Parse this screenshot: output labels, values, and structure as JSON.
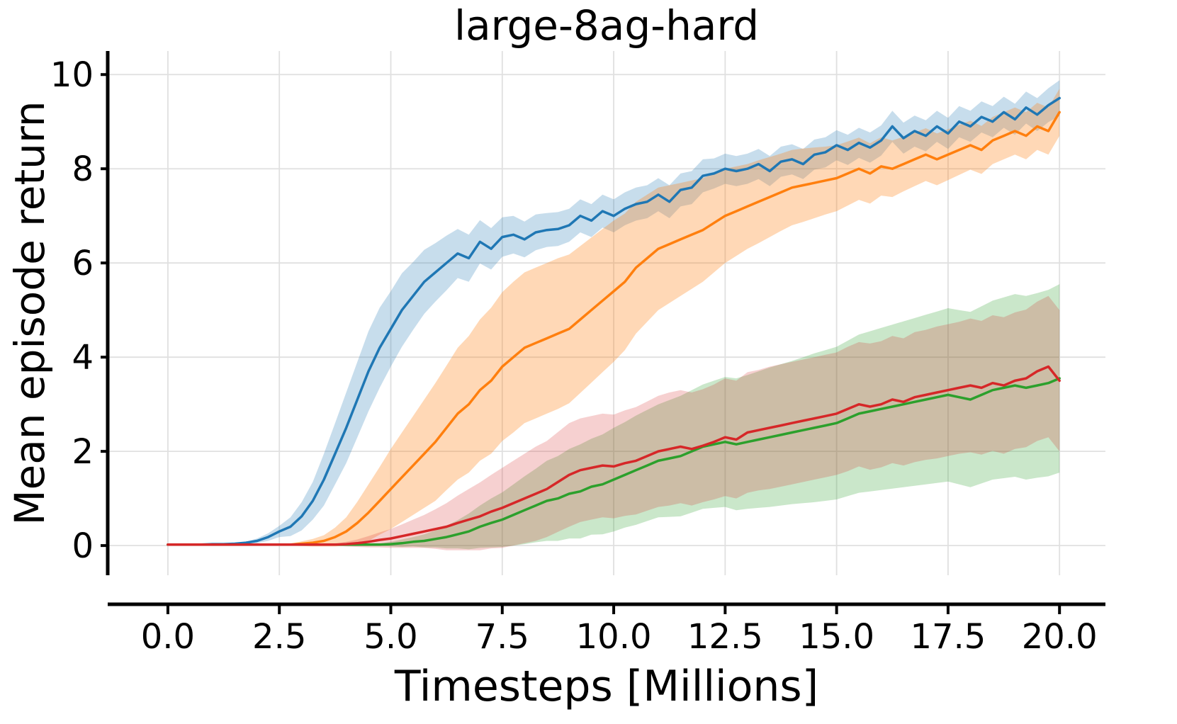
{
  "chart_data": {
    "type": "line",
    "title": "large-8ag-hard",
    "xlabel": "Timesteps [Millions]",
    "ylabel": "Mean episode return",
    "xlim": [
      -1.35,
      21.03
    ],
    "ylim": [
      -0.63,
      10.5
    ],
    "grid": true,
    "legend": "none",
    "x_ticks": [
      0.0,
      2.5,
      5.0,
      7.5,
      10.0,
      12.5,
      15.0,
      17.5,
      20.0
    ],
    "x_tick_labels": [
      "0.0",
      "2.5",
      "5.0",
      "7.5",
      "10.0",
      "12.5",
      "15.0",
      "17.5",
      "20.0"
    ],
    "y_ticks": [
      0,
      2,
      4,
      6,
      8,
      10
    ],
    "y_tick_labels": [
      "0",
      "2",
      "4",
      "6",
      "8",
      "10"
    ],
    "x_start": 0,
    "x_step": 0.25,
    "axis_color": "#000000",
    "grid_color": "#e0e0e0",
    "series": [
      {
        "name": "blue",
        "color": "#1f77b4",
        "band_opacity": 0.25,
        "mean": [
          0.02,
          0.02,
          0.02,
          0.02,
          0.03,
          0.03,
          0.04,
          0.06,
          0.1,
          0.18,
          0.3,
          0.4,
          0.62,
          0.95,
          1.4,
          1.95,
          2.5,
          3.1,
          3.7,
          4.2,
          4.6,
          5.0,
          5.3,
          5.6,
          5.8,
          6.0,
          6.2,
          6.1,
          6.45,
          6.3,
          6.55,
          6.6,
          6.5,
          6.65,
          6.7,
          6.72,
          6.8,
          7.0,
          6.9,
          7.1,
          7.0,
          7.15,
          7.25,
          7.3,
          7.45,
          7.3,
          7.55,
          7.6,
          7.85,
          7.9,
          8.0,
          7.95,
          8.0,
          8.1,
          7.95,
          8.15,
          8.2,
          8.1,
          8.3,
          8.35,
          8.5,
          8.4,
          8.55,
          8.45,
          8.6,
          8.9,
          8.65,
          8.8,
          8.7,
          8.9,
          8.75,
          9.0,
          8.9,
          9.1,
          9.0,
          9.2,
          9.05,
          9.3,
          9.15,
          9.35,
          9.5
        ],
        "halfwidth": [
          0.02,
          0.02,
          0.02,
          0.02,
          0.02,
          0.02,
          0.02,
          0.02,
          0.05,
          0.08,
          0.12,
          0.2,
          0.3,
          0.4,
          0.55,
          0.65,
          0.75,
          0.8,
          0.85,
          0.85,
          0.8,
          0.78,
          0.72,
          0.68,
          0.62,
          0.58,
          0.52,
          0.5,
          0.46,
          0.44,
          0.42,
          0.4,
          0.38,
          0.38,
          0.36,
          0.36,
          0.35,
          0.35,
          0.35,
          0.35,
          0.35,
          0.35,
          0.35,
          0.35,
          0.35,
          0.35,
          0.35,
          0.35,
          0.35,
          0.32,
          0.32,
          0.32,
          0.32,
          0.32,
          0.32,
          0.32,
          0.32,
          0.32,
          0.32,
          0.32,
          0.32,
          0.32,
          0.32,
          0.32,
          0.32,
          0.33,
          0.33,
          0.33,
          0.33,
          0.33,
          0.33,
          0.33,
          0.33,
          0.33,
          0.33,
          0.33,
          0.33,
          0.34,
          0.35,
          0.36,
          0.38
        ]
      },
      {
        "name": "orange",
        "color": "#ff7f0e",
        "band_opacity": 0.3,
        "mean": [
          0.02,
          0.02,
          0.02,
          0.02,
          0.02,
          0.02,
          0.02,
          0.02,
          0.02,
          0.02,
          0.02,
          0.02,
          0.04,
          0.06,
          0.1,
          0.18,
          0.3,
          0.48,
          0.7,
          0.95,
          1.2,
          1.45,
          1.7,
          1.95,
          2.2,
          2.5,
          2.8,
          3.0,
          3.3,
          3.5,
          3.8,
          4.0,
          4.2,
          4.3,
          4.4,
          4.5,
          4.6,
          4.8,
          5.0,
          5.2,
          5.4,
          5.6,
          5.9,
          6.1,
          6.3,
          6.4,
          6.5,
          6.6,
          6.7,
          6.85,
          7.0,
          7.1,
          7.2,
          7.3,
          7.4,
          7.5,
          7.6,
          7.65,
          7.7,
          7.75,
          7.8,
          7.9,
          8.0,
          7.9,
          8.05,
          8.0,
          8.1,
          8.2,
          8.3,
          8.2,
          8.3,
          8.4,
          8.5,
          8.4,
          8.6,
          8.7,
          8.8,
          8.7,
          8.9,
          8.8,
          9.2
        ],
        "halfwidth": [
          0.02,
          0.02,
          0.02,
          0.02,
          0.02,
          0.02,
          0.02,
          0.02,
          0.02,
          0.02,
          0.02,
          0.02,
          0.05,
          0.08,
          0.12,
          0.2,
          0.3,
          0.45,
          0.6,
          0.72,
          0.85,
          0.95,
          1.05,
          1.15,
          1.25,
          1.32,
          1.4,
          1.45,
          1.5,
          1.55,
          1.58,
          1.6,
          1.6,
          1.6,
          1.6,
          1.6,
          1.58,
          1.56,
          1.54,
          1.52,
          1.5,
          1.45,
          1.4,
          1.35,
          1.3,
          1.25,
          1.2,
          1.15,
          1.1,
          1.05,
          1.0,
          0.95,
          0.9,
          0.88,
          0.85,
          0.82,
          0.8,
          0.78,
          0.75,
          0.72,
          0.7,
          0.68,
          0.66,
          0.64,
          0.62,
          0.6,
          0.58,
          0.57,
          0.56,
          0.55,
          0.54,
          0.53,
          0.52,
          0.51,
          0.5,
          0.5,
          0.5,
          0.5,
          0.5,
          0.5,
          0.5
        ]
      },
      {
        "name": "green",
        "color": "#2ca02c",
        "band_opacity": 0.25,
        "mean": [
          0.02,
          0.02,
          0.02,
          0.02,
          0.02,
          0.02,
          0.02,
          0.02,
          0.02,
          0.02,
          0.02,
          0.02,
          0.02,
          0.02,
          0.02,
          0.02,
          0.02,
          0.02,
          0.02,
          0.02,
          0.03,
          0.05,
          0.08,
          0.1,
          0.14,
          0.18,
          0.24,
          0.3,
          0.4,
          0.48,
          0.55,
          0.65,
          0.75,
          0.85,
          0.95,
          1.0,
          1.1,
          1.15,
          1.25,
          1.3,
          1.4,
          1.5,
          1.6,
          1.7,
          1.8,
          1.85,
          1.9,
          2.0,
          2.1,
          2.15,
          2.2,
          2.15,
          2.2,
          2.25,
          2.3,
          2.35,
          2.4,
          2.45,
          2.5,
          2.55,
          2.6,
          2.7,
          2.8,
          2.85,
          2.9,
          2.95,
          3.0,
          3.05,
          3.1,
          3.15,
          3.2,
          3.15,
          3.1,
          3.2,
          3.3,
          3.35,
          3.4,
          3.35,
          3.4,
          3.45,
          3.55
        ],
        "halfwidth": [
          0.02,
          0.02,
          0.02,
          0.02,
          0.02,
          0.02,
          0.02,
          0.02,
          0.02,
          0.02,
          0.02,
          0.02,
          0.02,
          0.02,
          0.02,
          0.02,
          0.02,
          0.02,
          0.02,
          0.02,
          0.05,
          0.08,
          0.1,
          0.14,
          0.18,
          0.24,
          0.3,
          0.38,
          0.45,
          0.52,
          0.58,
          0.65,
          0.72,
          0.78,
          0.85,
          0.9,
          0.95,
          1.0,
          1.02,
          1.06,
          1.1,
          1.12,
          1.16,
          1.18,
          1.2,
          1.24,
          1.28,
          1.3,
          1.32,
          1.35,
          1.38,
          1.4,
          1.42,
          1.45,
          1.48,
          1.5,
          1.52,
          1.55,
          1.58,
          1.6,
          1.62,
          1.65,
          1.68,
          1.7,
          1.72,
          1.74,
          1.76,
          1.78,
          1.8,
          1.82,
          1.84,
          1.85,
          1.86,
          1.88,
          1.9,
          1.92,
          1.94,
          1.95,
          1.96,
          1.98,
          2.0
        ]
      },
      {
        "name": "red",
        "color": "#d62728",
        "band_opacity": 0.22,
        "mean": [
          0.02,
          0.02,
          0.02,
          0.02,
          0.02,
          0.02,
          0.02,
          0.02,
          0.02,
          0.02,
          0.02,
          0.02,
          0.02,
          0.02,
          0.02,
          0.02,
          0.03,
          0.05,
          0.08,
          0.12,
          0.15,
          0.2,
          0.25,
          0.3,
          0.35,
          0.4,
          0.48,
          0.55,
          0.62,
          0.72,
          0.8,
          0.9,
          1.0,
          1.1,
          1.2,
          1.35,
          1.5,
          1.6,
          1.65,
          1.7,
          1.68,
          1.75,
          1.8,
          1.9,
          2.0,
          2.05,
          2.1,
          2.05,
          2.12,
          2.2,
          2.3,
          2.25,
          2.4,
          2.45,
          2.5,
          2.55,
          2.6,
          2.65,
          2.7,
          2.75,
          2.8,
          2.9,
          3.0,
          2.95,
          3.0,
          3.1,
          3.05,
          3.15,
          3.2,
          3.25,
          3.3,
          3.35,
          3.4,
          3.35,
          3.45,
          3.4,
          3.5,
          3.55,
          3.7,
          3.8,
          3.5
        ],
        "halfwidth": [
          0.02,
          0.02,
          0.02,
          0.02,
          0.02,
          0.02,
          0.02,
          0.02,
          0.02,
          0.02,
          0.02,
          0.02,
          0.02,
          0.02,
          0.02,
          0.02,
          0.05,
          0.08,
          0.12,
          0.16,
          0.2,
          0.25,
          0.3,
          0.35,
          0.42,
          0.5,
          0.58,
          0.65,
          0.72,
          0.78,
          0.85,
          0.9,
          0.95,
          1.0,
          1.02,
          1.06,
          1.1,
          1.1,
          1.1,
          1.1,
          1.1,
          1.12,
          1.14,
          1.16,
          1.18,
          1.2,
          1.2,
          1.2,
          1.2,
          1.22,
          1.25,
          1.25,
          1.28,
          1.28,
          1.3,
          1.3,
          1.3,
          1.3,
          1.3,
          1.3,
          1.3,
          1.32,
          1.32,
          1.34,
          1.34,
          1.35,
          1.35,
          1.38,
          1.38,
          1.4,
          1.4,
          1.4,
          1.42,
          1.42,
          1.44,
          1.45,
          1.45,
          1.46,
          1.48,
          1.5,
          1.5
        ]
      }
    ]
  }
}
